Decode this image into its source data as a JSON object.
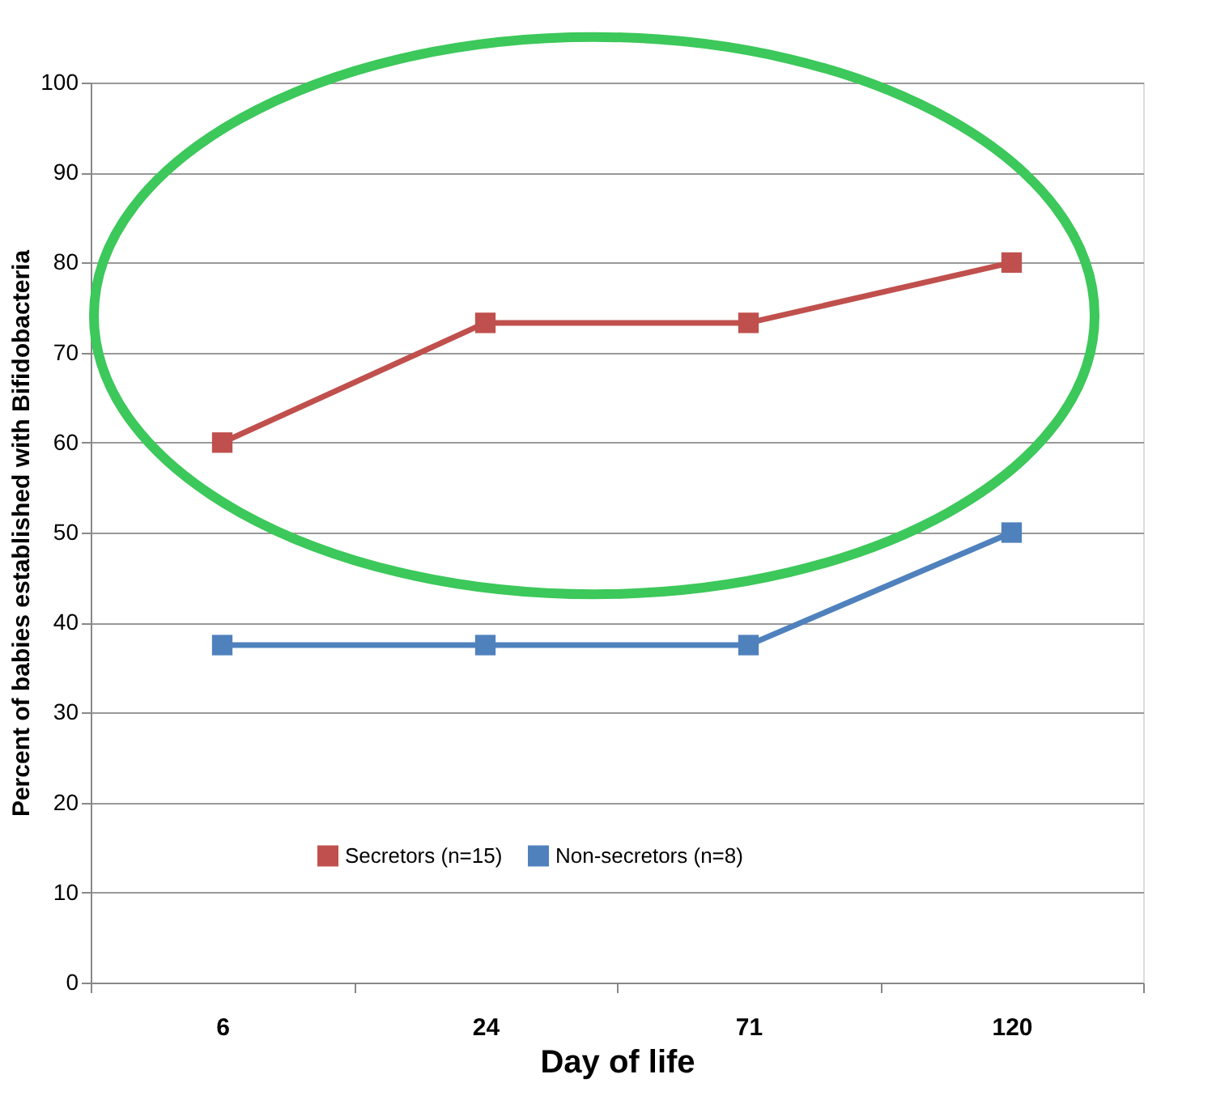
{
  "chart_data": {
    "type": "line",
    "xlabel": "Day of life",
    "ylabel": "Percent of babies established with Bifidobacteria",
    "categories": [
      "6",
      "24",
      "71",
      "120"
    ],
    "series": [
      {
        "name": "Secretors (n=15)",
        "color": "#c0504d",
        "values": [
          60,
          73.3,
          73.3,
          80
        ]
      },
      {
        "name": "Non-secretors (n=8)",
        "color": "#4f81bd",
        "values": [
          37.5,
          37.5,
          37.5,
          50
        ]
      }
    ],
    "ylim": [
      0,
      100
    ],
    "yticks": [
      0,
      10,
      20,
      30,
      40,
      50,
      60,
      70,
      80,
      90,
      100
    ],
    "grid": "y",
    "legend": "bottom",
    "marker": "square",
    "line_style": "solid"
  }
}
